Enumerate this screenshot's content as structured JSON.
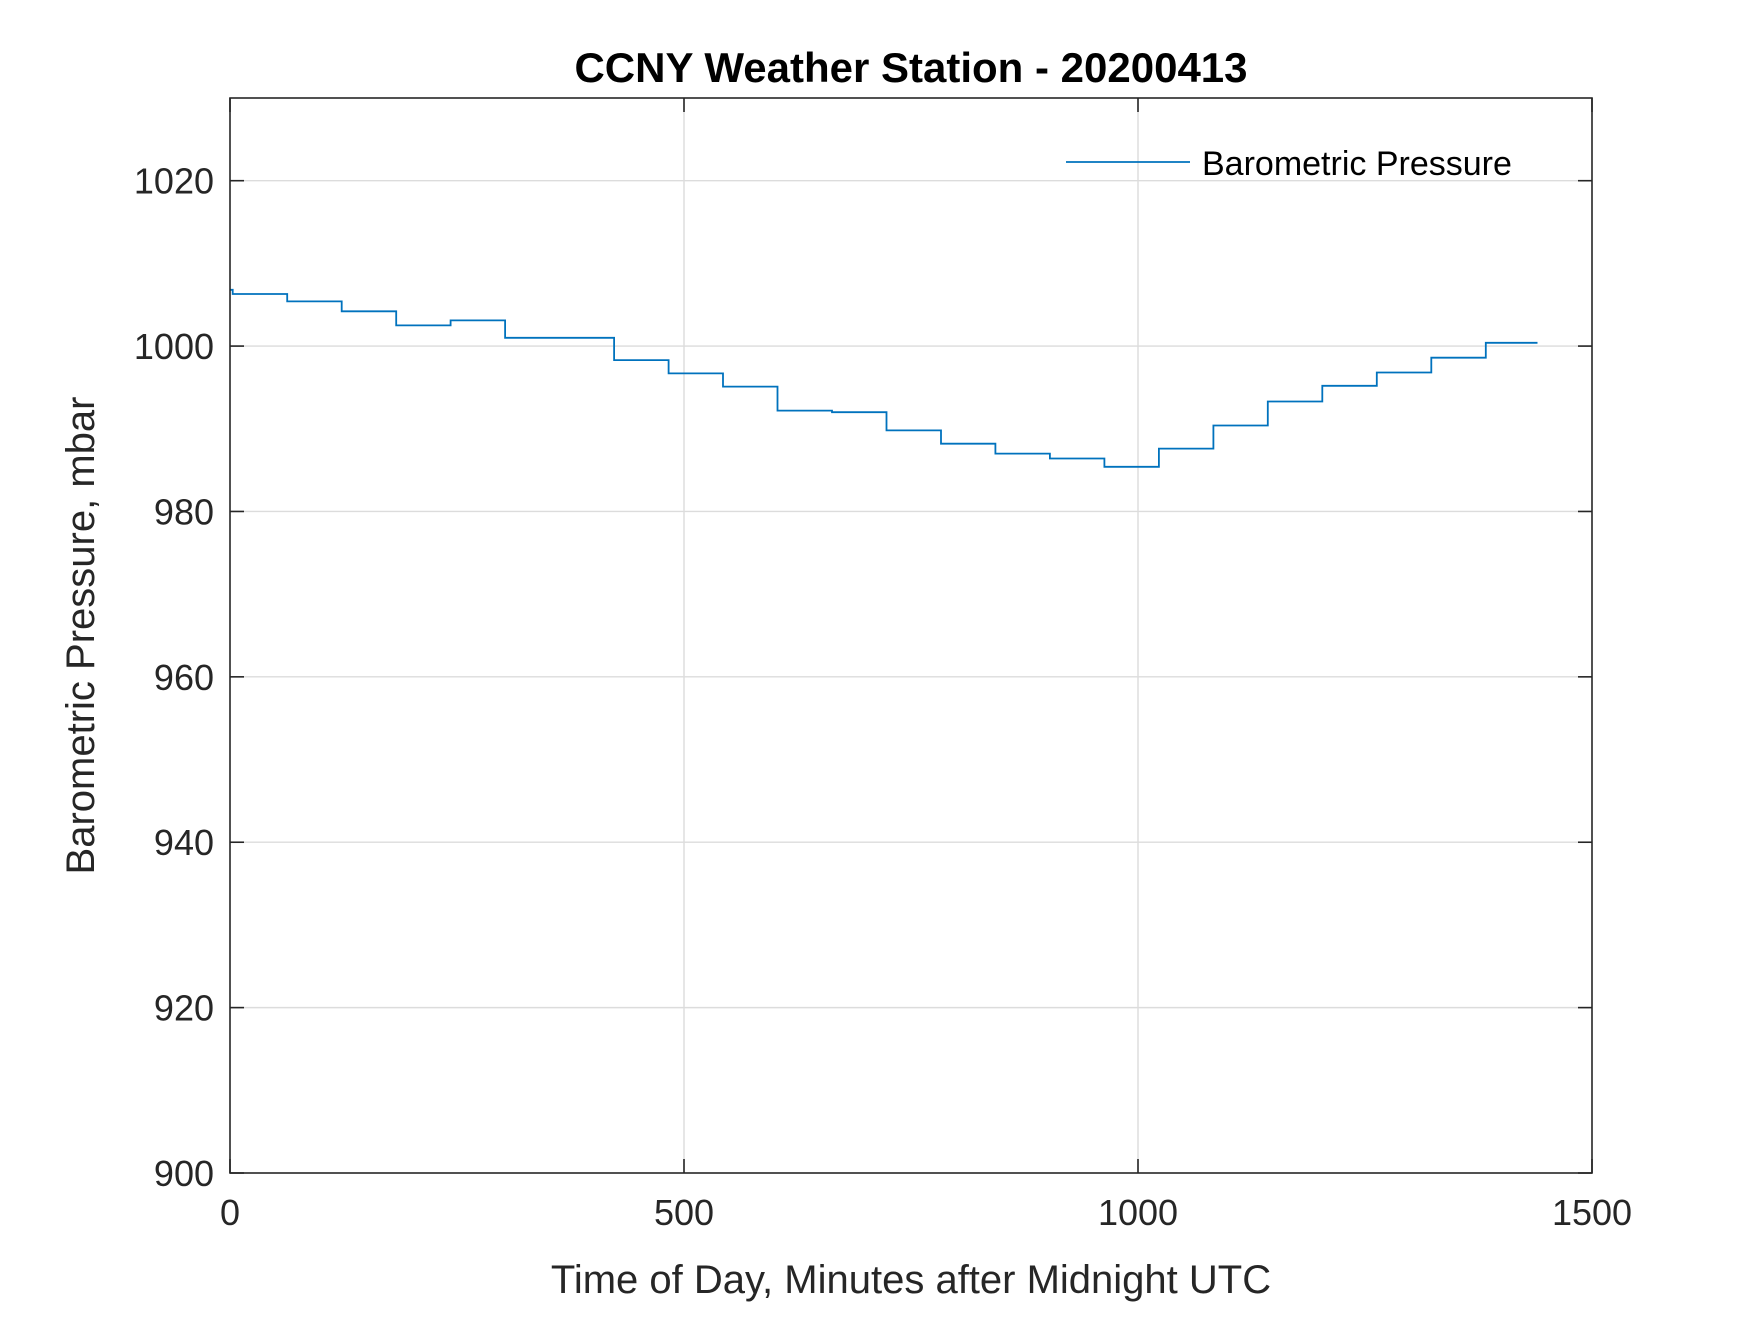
{
  "chart_data": {
    "type": "line",
    "title": "CCNY Weather Station - 20200413",
    "xlabel": "Time of Day, Minutes after Midnight UTC",
    "ylabel": "Barometric Pressure, mbar",
    "xlim": [
      0,
      1500
    ],
    "ylim": [
      900,
      1030
    ],
    "xticks": [
      0,
      500,
      1000,
      1500
    ],
    "yticks": [
      900,
      920,
      940,
      960,
      980,
      1000,
      1020
    ],
    "grid": true,
    "legend_position": "top-right",
    "line_color": "#0072BD",
    "series": [
      {
        "name": "Barometric Pressure",
        "step": "post",
        "x": [
          0,
          3,
          63,
          123,
          183,
          243,
          303,
          363,
          423,
          483,
          543,
          603,
          663,
          723,
          783,
          843,
          903,
          963,
          1023,
          1083,
          1143,
          1203,
          1263,
          1323,
          1383,
          1440
        ],
        "y": [
          1006.8,
          1006.3,
          1005.4,
          1004.2,
          1002.5,
          1003.1,
          1001.0,
          1001.0,
          998.3,
          996.7,
          995.1,
          992.2,
          992.0,
          989.8,
          988.2,
          987.0,
          986.4,
          985.4,
          987.6,
          990.4,
          993.3,
          995.2,
          996.8,
          998.6,
          1000.4,
          1000.4
        ]
      }
    ]
  }
}
